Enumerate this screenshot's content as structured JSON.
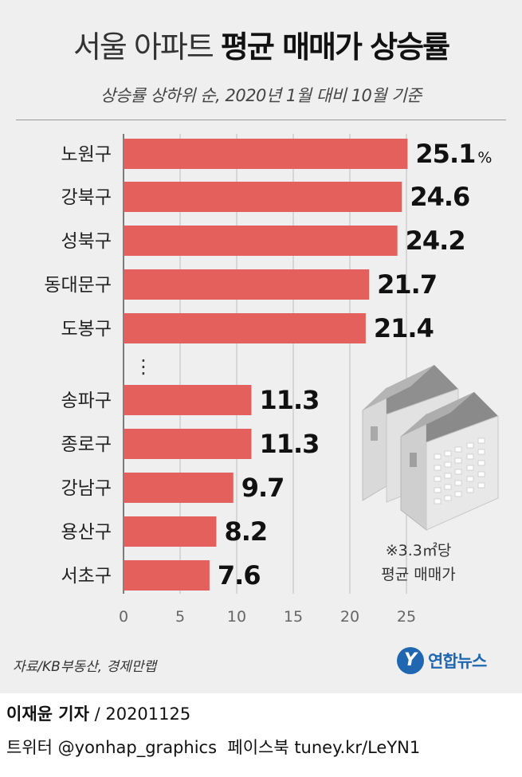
{
  "header": {
    "title_light": "서울 아파트",
    "title_bold": "평균 매매가 상승률",
    "subtitle": "상승률 상하위 순, 2020년 1월 대비 10월 기준"
  },
  "chart_data": {
    "type": "bar",
    "orientation": "horizontal",
    "bar_color": "#e4605c",
    "categories": [
      "노원구",
      "강북구",
      "성북구",
      "동대문구",
      "도봉구",
      "송파구",
      "종로구",
      "강남구",
      "용산구",
      "서초구"
    ],
    "values": [
      25.1,
      24.6,
      24.2,
      21.7,
      21.4,
      11.3,
      11.3,
      9.7,
      8.2,
      7.6
    ],
    "value_labels": [
      "25.1",
      "24.6",
      "24.2",
      "21.7",
      "21.4",
      "11.3",
      "11.3",
      "9.7",
      "8.2",
      "7.6"
    ],
    "first_label_unit": "%",
    "group_break_marker": "⋮",
    "xlim": [
      0,
      25
    ],
    "xticks": [
      "0",
      "5",
      "10",
      "15",
      "20",
      "25"
    ],
    "grid": true
  },
  "note": {
    "line1": "※3.3㎡당",
    "line2": "평균 매매가"
  },
  "footer": {
    "source": "자료/KB부동산, 경제만랩",
    "logo_mark": "Y",
    "logo_text": "연합뉴스",
    "reporter": "이재윤 기자",
    "date": " / 20201125",
    "social": "트위터 @yonhap_graphics  페이스북 tuney.kr/LeYN1"
  }
}
